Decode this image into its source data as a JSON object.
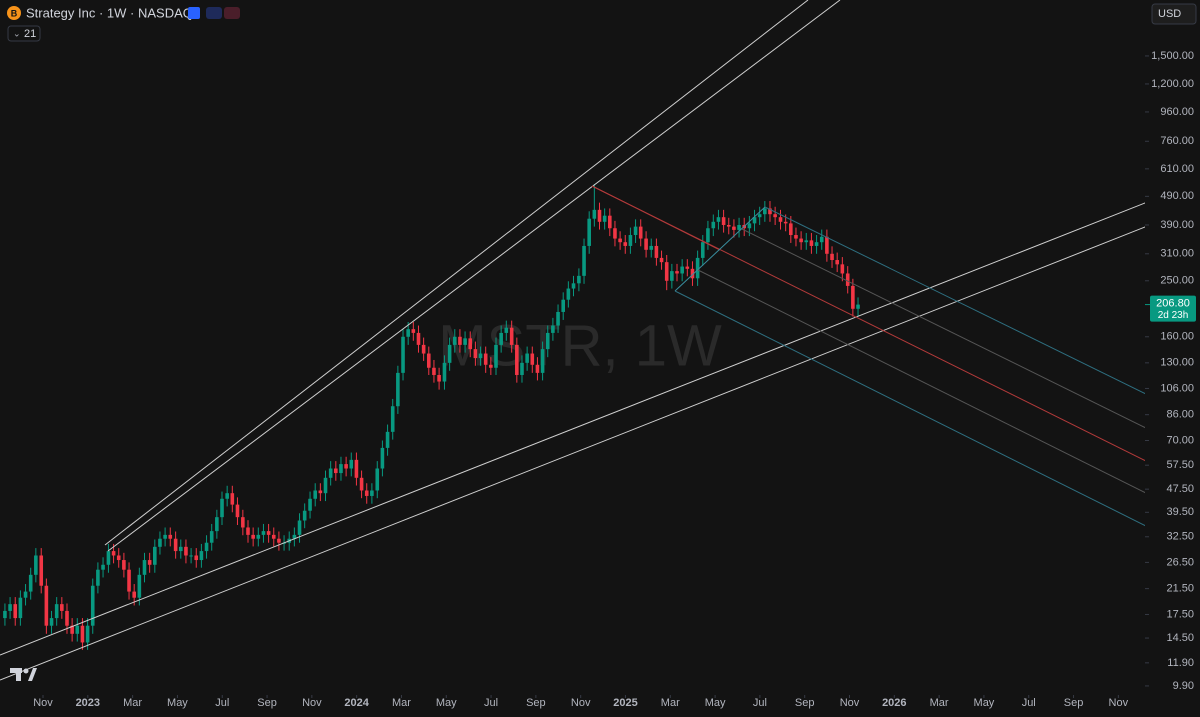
{
  "chart_data": {
    "type": "candlestick",
    "title": "Strategy Inc · 1W · NASDAQ",
    "indicator": "21",
    "currency": "USD",
    "watermark": "MSTR, 1W",
    "log": true,
    "grid": false,
    "up_color": "#089981",
    "down_color": "#f23645",
    "xlim": [
      -1.92,
      49.19
    ],
    "ylim": [
      9.21,
      2343
    ],
    "xticks": [
      {
        "value": 0,
        "label": "Nov"
      },
      {
        "value": 2,
        "label": "2023"
      },
      {
        "value": 4,
        "label": "Mar"
      },
      {
        "value": 6,
        "label": "May"
      },
      {
        "value": 8,
        "label": "Jul"
      },
      {
        "value": 10,
        "label": "Sep"
      },
      {
        "value": 12,
        "label": "Nov"
      },
      {
        "value": 14,
        "label": "2024"
      },
      {
        "value": 16,
        "label": "Mar"
      },
      {
        "value": 18,
        "label": "May"
      },
      {
        "value": 20,
        "label": "Jul"
      },
      {
        "value": 22,
        "label": "Sep"
      },
      {
        "value": 24,
        "label": "Nov"
      },
      {
        "value": 26,
        "label": "2025"
      },
      {
        "value": 28,
        "label": "Mar"
      },
      {
        "value": 30,
        "label": "May"
      },
      {
        "value": 32,
        "label": "Jul"
      },
      {
        "value": 34,
        "label": "Sep"
      },
      {
        "value": 36,
        "label": "Nov"
      },
      {
        "value": 38,
        "label": "2026"
      },
      {
        "value": 40,
        "label": "Mar"
      },
      {
        "value": 42,
        "label": "May"
      },
      {
        "value": 44,
        "label": "Jul"
      },
      {
        "value": 46,
        "label": "Sep"
      },
      {
        "value": 48,
        "label": "Nov"
      }
    ],
    "yticks": [
      {
        "value": 1500,
        "label": "1,500.00"
      },
      {
        "value": 1200,
        "label": "1,200.00"
      },
      {
        "value": 960,
        "label": "960.00"
      },
      {
        "value": 760,
        "label": "760.00"
      },
      {
        "value": 610,
        "label": "610.00"
      },
      {
        "value": 490,
        "label": "490.00"
      },
      {
        "value": 390,
        "label": "390.00"
      },
      {
        "value": 310,
        "label": "310.00"
      },
      {
        "value": 250,
        "label": "250.00"
      },
      {
        "value": 160,
        "label": "160.00"
      },
      {
        "value": 130,
        "label": "130.00"
      },
      {
        "value": 106,
        "label": "106.00"
      },
      {
        "value": 86,
        "label": "86.00"
      },
      {
        "value": 70,
        "label": "70.00"
      },
      {
        "value": 57.5,
        "label": "57.50"
      },
      {
        "value": 47.5,
        "label": "47.50"
      },
      {
        "value": 39.5,
        "label": "39.50"
      },
      {
        "value": 32.5,
        "label": "32.50"
      },
      {
        "value": 26.5,
        "label": "26.50"
      },
      {
        "value": 21.5,
        "label": "21.50"
      },
      {
        "value": 17.5,
        "label": "17.50"
      },
      {
        "value": 14.5,
        "label": "14.50"
      },
      {
        "value": 11.9,
        "label": "11.90"
      },
      {
        "value": 9.9,
        "label": "9.90"
      }
    ],
    "price_label": {
      "value": 206.8,
      "label": "206.80",
      "countdown": "2d 23h"
    },
    "x": [
      -1.7,
      -1.47,
      -1.24,
      -1.01,
      -0.78,
      -0.55,
      -0.32,
      -0.08,
      0.15,
      0.38,
      0.61,
      0.84,
      1.07,
      1.3,
      1.53,
      1.76,
      1.99,
      2.22,
      2.45,
      2.68,
      2.92,
      3.15,
      3.38,
      3.61,
      3.84,
      4.07,
      4.3,
      4.53,
      4.76,
      4.99,
      5.22,
      5.45,
      5.68,
      5.92,
      6.15,
      6.38,
      6.61,
      6.84,
      7.07,
      7.3,
      7.53,
      7.76,
      7.99,
      8.22,
      8.45,
      8.68,
      8.92,
      9.15,
      9.38,
      9.61,
      9.84,
      10.07,
      10.3,
      10.53,
      10.76,
      10.99,
      11.22,
      11.45,
      11.68,
      11.92,
      12.15,
      12.38,
      12.61,
      12.84,
      13.07,
      13.3,
      13.53,
      13.76,
      13.99,
      14.22,
      14.45,
      14.68,
      14.92,
      15.15,
      15.38,
      15.61,
      15.84,
      16.07,
      16.3,
      16.53,
      16.76,
      16.99,
      17.22,
      17.45,
      17.68,
      17.92,
      18.15,
      18.38,
      18.61,
      18.84,
      19.07,
      19.3,
      19.53,
      19.76,
      19.99,
      20.22,
      20.45,
      20.68,
      20.92,
      21.15,
      21.38,
      21.61,
      21.84,
      22.07,
      22.3,
      22.53,
      22.76,
      22.99,
      23.22,
      23.45,
      23.68,
      23.92,
      24.15,
      24.38,
      24.61,
      24.84,
      25.07,
      25.3,
      25.53,
      25.76,
      25.99,
      26.22,
      26.45,
      26.68,
      26.92,
      27.15,
      27.38,
      27.61,
      27.84,
      28.07,
      28.3,
      28.53,
      28.76,
      28.99,
      29.22,
      29.45,
      29.68,
      29.92,
      30.15,
      30.38,
      30.61,
      30.84,
      31.07,
      31.3,
      31.53,
      31.76,
      31.99,
      32.22,
      32.45,
      32.68,
      32.92,
      33.15,
      33.38,
      33.61,
      33.84,
      34.07,
      34.3,
      34.53,
      34.76,
      34.99,
      35.22,
      35.45,
      35.68,
      35.92,
      36.15,
      36.38
    ],
    "open": [
      17,
      18,
      19,
      17,
      20,
      21,
      24,
      28,
      22,
      16,
      17,
      19,
      18,
      16,
      15,
      16,
      14,
      16,
      22,
      25,
      26,
      29,
      28,
      27,
      25,
      21,
      20,
      24,
      27,
      26,
      30,
      32,
      33,
      32,
      29,
      30,
      28,
      28,
      27,
      29,
      31,
      34,
      38,
      44,
      46,
      42,
      38,
      35,
      33,
      32,
      33,
      34,
      33,
      32,
      31,
      31,
      32,
      33,
      37,
      40,
      44,
      47,
      46,
      52,
      56,
      54,
      58,
      56,
      60,
      52,
      47,
      45,
      47,
      56,
      66,
      75,
      92,
      120,
      160,
      170,
      165,
      150,
      140,
      125,
      118,
      112,
      130,
      150,
      160,
      150,
      158,
      145,
      135,
      140,
      128,
      125,
      150,
      165,
      172,
      150,
      118,
      130,
      140,
      128,
      120,
      145,
      165,
      175,
      195,
      215,
      235,
      245,
      260,
      330,
      410,
      440,
      400,
      420,
      380,
      350,
      340,
      330,
      360,
      385,
      350,
      320,
      330,
      300,
      290,
      250,
      270,
      265,
      280,
      275,
      255,
      300,
      340,
      380,
      400,
      415,
      390,
      385,
      375,
      390,
      380,
      395,
      415,
      425,
      445,
      425,
      415,
      400,
      395,
      360,
      350,
      340,
      345,
      330,
      340,
      355,
      310,
      295,
      285,
      265,
      240,
      200
    ],
    "high": [
      19.1,
      20.1,
      20.1,
      21.2,
      22.3,
      25.4,
      29.7,
      29.7,
      23.3,
      18,
      20.1,
      20.1,
      19.1,
      17,
      17,
      17,
      17,
      23.3,
      26.5,
      27.6,
      30.7,
      30.7,
      29.7,
      28.6,
      26.5,
      22.3,
      25.4,
      28.6,
      28.6,
      31.8,
      33.9,
      35,
      35,
      33.9,
      31.8,
      31.8,
      29.7,
      29.7,
      30.7,
      32.9,
      36,
      40.3,
      46.6,
      48.8,
      48.8,
      44.5,
      40.3,
      37.1,
      35,
      35,
      36,
      36,
      35,
      33.9,
      32.9,
      33.9,
      35,
      39.2,
      42.4,
      46.6,
      49.8,
      49.8,
      55.1,
      59.4,
      59.4,
      61.5,
      61.5,
      63.6,
      63.6,
      55.1,
      49.8,
      49.8,
      59.4,
      70,
      79.5,
      97.5,
      127,
      170,
      180,
      180,
      175,
      159,
      148,
      133,
      125,
      138,
      159,
      170,
      170,
      167,
      167,
      154,
      148,
      148,
      136,
      159,
      175,
      182,
      182,
      159,
      138,
      148,
      148,
      136,
      154,
      175,
      186,
      207,
      228,
      249,
      260,
      276,
      350,
      435,
      540,
      466,
      445,
      445,
      403,
      371,
      360,
      382,
      408,
      408,
      371,
      350,
      350,
      318,
      307,
      286,
      286,
      297,
      297,
      292,
      318,
      360,
      403,
      424,
      440,
      440,
      413,
      408,
      413,
      413,
      419,
      440,
      451,
      472,
      472,
      451,
      440,
      424,
      419,
      382,
      371,
      366,
      366,
      360,
      376,
      376,
      329,
      313,
      302,
      281,
      254,
      219
    ],
    "low": [
      16,
      16.9,
      16,
      16,
      18.8,
      19.7,
      22.6,
      20.7,
      15,
      15,
      16,
      16.9,
      15,
      14.1,
      14.1,
      13.2,
      13.2,
      15,
      20.7,
      23.5,
      24.4,
      26.3,
      25.4,
      23.5,
      19.7,
      18.8,
      18.8,
      22.6,
      24.4,
      24.4,
      28.2,
      30.1,
      30.1,
      27.3,
      27.3,
      26.3,
      26.3,
      25.4,
      25.4,
      27.3,
      29.1,
      32,
      35.7,
      41.4,
      39.5,
      35.7,
      32.9,
      31,
      30.1,
      30.1,
      31,
      31,
      30.1,
      29.1,
      29.1,
      29.1,
      30.1,
      31,
      34.8,
      37.6,
      41.4,
      43.2,
      43.2,
      48.9,
      50.8,
      50.8,
      52.6,
      52.6,
      48.9,
      44.2,
      42.3,
      42.3,
      44.2,
      52.6,
      62,
      70.5,
      86.5,
      113,
      150,
      155,
      141,
      132,
      118,
      111,
      105,
      105,
      122,
      141,
      141,
      141,
      136,
      127,
      127,
      120,
      118,
      118,
      141,
      155,
      141,
      111,
      111,
      122,
      120,
      113,
      113,
      136,
      155,
      165,
      183,
      202,
      221,
      230,
      244,
      310,
      385,
      376,
      376,
      357,
      329,
      320,
      310,
      310,
      338,
      329,
      301,
      301,
      282,
      273,
      232,
      235,
      249,
      249,
      259,
      240,
      240,
      282,
      320,
      357,
      376,
      367,
      362,
      353,
      353,
      357,
      357,
      371,
      390,
      400,
      400,
      390,
      376,
      371,
      338,
      329,
      320,
      320,
      310,
      310,
      320,
      291,
      277,
      268,
      249,
      226,
      188,
      188
    ],
    "close": [
      18,
      19,
      17,
      20,
      21,
      24,
      28,
      22,
      16,
      17,
      19,
      18,
      16,
      15,
      16,
      14,
      16,
      22,
      25,
      26,
      29,
      28,
      27,
      25,
      21,
      20,
      24,
      27,
      26,
      30,
      32,
      33,
      32,
      29,
      30,
      28,
      28,
      27,
      29,
      31,
      34,
      38,
      44,
      46,
      42,
      38,
      35,
      33,
      32,
      33,
      34,
      33,
      32,
      31,
      31,
      32,
      33,
      37,
      40,
      44,
      47,
      46,
      52,
      56,
      54,
      58,
      56,
      60,
      52,
      47,
      45,
      47,
      56,
      66,
      75,
      92,
      120,
      160,
      170,
      165,
      150,
      140,
      125,
      118,
      112,
      130,
      150,
      160,
      150,
      158,
      145,
      135,
      140,
      128,
      125,
      150,
      165,
      172,
      150,
      118,
      130,
      140,
      128,
      120,
      145,
      165,
      175,
      195,
      215,
      235,
      245,
      260,
      330,
      410,
      440,
      400,
      420,
      380,
      350,
      340,
      330,
      360,
      385,
      350,
      320,
      330,
      300,
      290,
      250,
      270,
      265,
      280,
      275,
      255,
      300,
      340,
      380,
      400,
      415,
      390,
      385,
      375,
      390,
      380,
      395,
      415,
      425,
      445,
      425,
      415,
      400,
      395,
      360,
      350,
      340,
      345,
      330,
      340,
      355,
      310,
      295,
      285,
      265,
      240,
      200,
      206.8
    ]
  }
}
